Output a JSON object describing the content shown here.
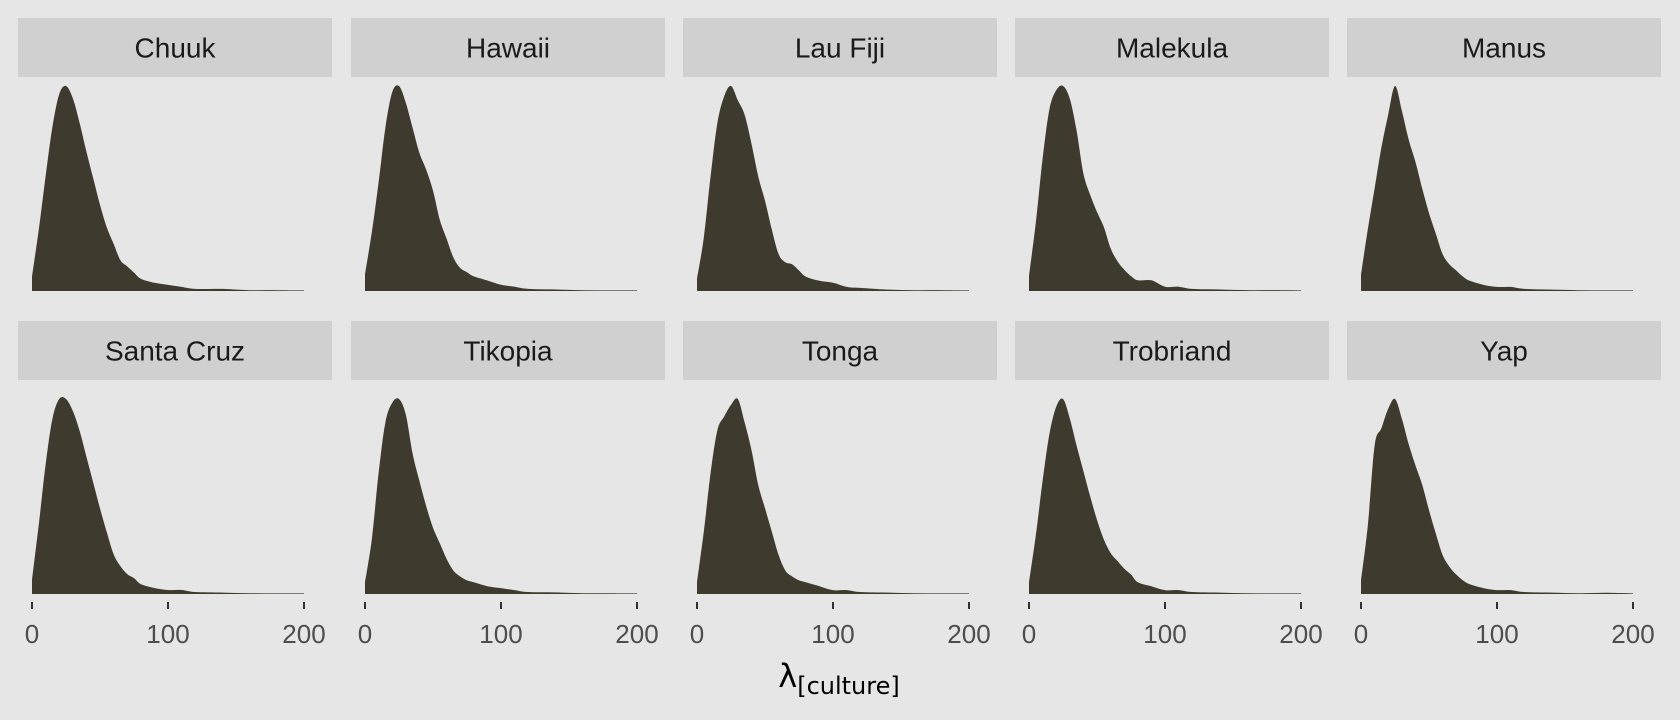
{
  "chart_data": {
    "type": "area",
    "subtype": "faceted-density",
    "fill_color": "#3e3a2d",
    "background_color": "#e6e6e6",
    "strip_color": "#d0d0d0",
    "xlabel_symbol": "λ",
    "xlabel_subscript": "[culture]",
    "ylabel": "",
    "xlim": [
      0,
      200
    ],
    "x_ticks": [
      0,
      100,
      200
    ],
    "x_tick_labels": [
      "0",
      "100",
      "200"
    ],
    "y_ticks_shown": false,
    "grid": false,
    "facets": [
      {
        "name": "Chuuk",
        "x": [
          0,
          5,
          10,
          15,
          20,
          25,
          30,
          35,
          40,
          45,
          50,
          55,
          60,
          65,
          70,
          75,
          80,
          90,
          100,
          110,
          120,
          140,
          160,
          180,
          200
        ],
        "y": [
          0.07,
          0.3,
          0.56,
          0.8,
          0.96,
          1.0,
          0.94,
          0.82,
          0.68,
          0.55,
          0.42,
          0.31,
          0.23,
          0.15,
          0.12,
          0.09,
          0.06,
          0.04,
          0.03,
          0.02,
          0.01,
          0.01,
          0.004,
          0.004,
          0.003
        ]
      },
      {
        "name": "Hawaii",
        "x": [
          0,
          5,
          10,
          15,
          20,
          25,
          30,
          35,
          40,
          45,
          50,
          55,
          60,
          65,
          70,
          75,
          80,
          90,
          100,
          110,
          120,
          140,
          160,
          180,
          200
        ],
        "y": [
          0.08,
          0.28,
          0.52,
          0.78,
          0.95,
          0.98,
          0.9,
          0.78,
          0.66,
          0.58,
          0.48,
          0.34,
          0.25,
          0.16,
          0.11,
          0.09,
          0.07,
          0.05,
          0.03,
          0.02,
          0.01,
          0.007,
          0.004,
          0.003,
          0.003
        ]
      },
      {
        "name": "Lau Fiji",
        "x": [
          0,
          5,
          10,
          15,
          20,
          25,
          30,
          35,
          40,
          45,
          50,
          55,
          60,
          65,
          70,
          75,
          80,
          90,
          100,
          110,
          120,
          140,
          160,
          180,
          200
        ],
        "y": [
          0.06,
          0.26,
          0.56,
          0.82,
          0.95,
          1.0,
          0.93,
          0.86,
          0.72,
          0.56,
          0.44,
          0.3,
          0.18,
          0.14,
          0.13,
          0.1,
          0.07,
          0.05,
          0.04,
          0.02,
          0.015,
          0.007,
          0.004,
          0.004,
          0.003
        ]
      },
      {
        "name": "Malekula",
        "x": [
          0,
          5,
          10,
          15,
          20,
          25,
          30,
          35,
          40,
          45,
          50,
          55,
          60,
          65,
          70,
          75,
          80,
          90,
          100,
          110,
          120,
          140,
          160,
          180,
          200
        ],
        "y": [
          0.07,
          0.32,
          0.62,
          0.85,
          0.94,
          0.96,
          0.9,
          0.75,
          0.55,
          0.45,
          0.37,
          0.3,
          0.2,
          0.14,
          0.1,
          0.07,
          0.05,
          0.05,
          0.02,
          0.02,
          0.01,
          0.007,
          0.004,
          0.004,
          0.003
        ]
      },
      {
        "name": "Manus",
        "x": [
          0,
          5,
          10,
          15,
          20,
          25,
          30,
          35,
          40,
          45,
          50,
          55,
          60,
          65,
          70,
          75,
          80,
          90,
          100,
          110,
          120,
          140,
          160,
          180,
          200
        ],
        "y": [
          0.08,
          0.3,
          0.5,
          0.7,
          0.86,
          1.0,
          0.88,
          0.74,
          0.63,
          0.5,
          0.38,
          0.28,
          0.18,
          0.13,
          0.1,
          0.07,
          0.05,
          0.03,
          0.02,
          0.02,
          0.01,
          0.007,
          0.004,
          0.003,
          0.003
        ]
      },
      {
        "name": "Santa Cruz",
        "x": [
          0,
          5,
          10,
          15,
          20,
          25,
          30,
          35,
          40,
          45,
          50,
          55,
          60,
          65,
          70,
          75,
          80,
          90,
          100,
          110,
          120,
          140,
          160,
          180,
          200
        ],
        "y": [
          0.07,
          0.35,
          0.65,
          0.88,
          0.98,
          0.98,
          0.92,
          0.82,
          0.69,
          0.56,
          0.43,
          0.31,
          0.2,
          0.14,
          0.1,
          0.08,
          0.05,
          0.03,
          0.02,
          0.02,
          0.01,
          0.007,
          0.004,
          0.003,
          0.003
        ]
      },
      {
        "name": "Tikopia",
        "x": [
          0,
          5,
          10,
          15,
          20,
          25,
          30,
          35,
          40,
          45,
          50,
          55,
          60,
          65,
          70,
          75,
          80,
          90,
          100,
          110,
          120,
          140,
          160,
          180,
          200
        ],
        "y": [
          0.06,
          0.28,
          0.62,
          0.88,
          0.98,
          1.0,
          0.92,
          0.72,
          0.58,
          0.45,
          0.34,
          0.26,
          0.18,
          0.12,
          0.09,
          0.07,
          0.06,
          0.04,
          0.03,
          0.02,
          0.01,
          0.008,
          0.004,
          0.004,
          0.003
        ]
      },
      {
        "name": "Tonga",
        "x": [
          0,
          5,
          10,
          15,
          20,
          25,
          30,
          35,
          40,
          45,
          50,
          55,
          60,
          65,
          70,
          75,
          80,
          90,
          100,
          110,
          120,
          140,
          160,
          180,
          200
        ],
        "y": [
          0.06,
          0.32,
          0.62,
          0.84,
          0.91,
          0.97,
          1.0,
          0.88,
          0.74,
          0.56,
          0.44,
          0.32,
          0.2,
          0.12,
          0.09,
          0.07,
          0.06,
          0.04,
          0.02,
          0.02,
          0.01,
          0.007,
          0.004,
          0.003,
          0.003
        ]
      },
      {
        "name": "Trobriand",
        "x": [
          0,
          5,
          10,
          15,
          20,
          25,
          30,
          35,
          40,
          45,
          50,
          55,
          60,
          65,
          70,
          75,
          80,
          90,
          100,
          110,
          120,
          140,
          160,
          180,
          200
        ],
        "y": [
          0.06,
          0.3,
          0.58,
          0.82,
          0.96,
          1.0,
          0.9,
          0.76,
          0.63,
          0.5,
          0.38,
          0.28,
          0.21,
          0.17,
          0.13,
          0.1,
          0.06,
          0.04,
          0.02,
          0.02,
          0.01,
          0.007,
          0.004,
          0.003,
          0.003
        ]
      },
      {
        "name": "Yap",
        "x": [
          0,
          5,
          10,
          15,
          20,
          25,
          30,
          35,
          40,
          45,
          50,
          55,
          60,
          65,
          70,
          75,
          80,
          90,
          100,
          110,
          120,
          140,
          160,
          180,
          200
        ],
        "y": [
          0.07,
          0.35,
          0.76,
          0.85,
          0.95,
          1.0,
          0.9,
          0.77,
          0.66,
          0.56,
          0.43,
          0.31,
          0.2,
          0.14,
          0.1,
          0.07,
          0.05,
          0.03,
          0.02,
          0.02,
          0.01,
          0.007,
          0.004,
          0.006,
          0.003
        ]
      }
    ]
  }
}
